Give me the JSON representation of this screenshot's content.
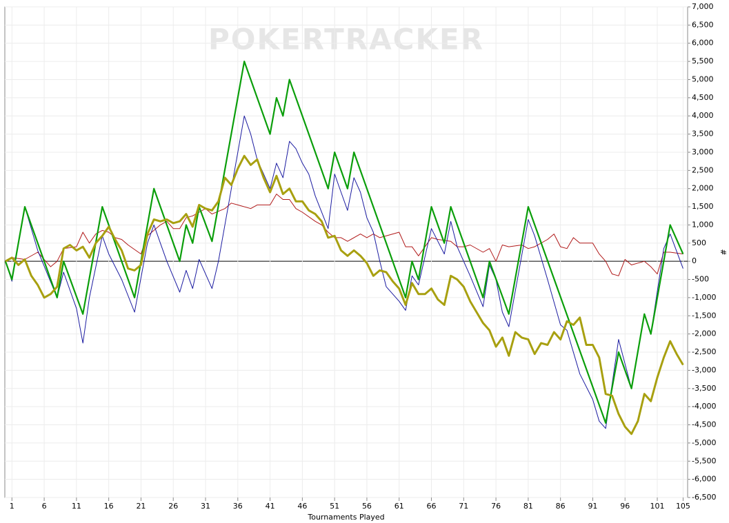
{
  "chart_data": {
    "type": "line",
    "watermark": "POKERTRACKER",
    "x_label": "Tournaments Played",
    "y_label": "#",
    "xlim": [
      -0.1,
      105.7
    ],
    "ylim": [
      -6500,
      7000
    ],
    "xticks": [
      1,
      6,
      11,
      16,
      21,
      26,
      31,
      36,
      41,
      46,
      51,
      56,
      61,
      66,
      71,
      76,
      81,
      86,
      91,
      96,
      101,
      105
    ],
    "yticks": [
      {
        "value": -6500,
        "label": "-6,500"
      },
      {
        "value": -6000,
        "label": "-6,000"
      },
      {
        "value": -5500,
        "label": "-5,500"
      },
      {
        "value": -5000,
        "label": "-5,000"
      },
      {
        "value": -4500,
        "label": "-4,500"
      },
      {
        "value": -4000,
        "label": "-4,000"
      },
      {
        "value": -3500,
        "label": "-3,500"
      },
      {
        "value": -3000,
        "label": "-3,000"
      },
      {
        "value": -2500,
        "label": "-2,500"
      },
      {
        "value": -2000,
        "label": "-2,000"
      },
      {
        "value": -1500,
        "label": "-1,500"
      },
      {
        "value": -1000,
        "label": "-1,000"
      },
      -500,
      0,
      500,
      {
        "value": 1000,
        "label": "1,000"
      },
      {
        "value": 1500,
        "label": "1,500"
      },
      {
        "value": 2000,
        "label": "2,000"
      },
      {
        "value": 2500,
        "label": "2,500"
      },
      {
        "value": 3000,
        "label": "3,000"
      },
      {
        "value": 3500,
        "label": "3,500"
      },
      {
        "value": 4000,
        "label": "4,000"
      },
      {
        "value": 4500,
        "label": "4,500"
      },
      {
        "value": 5000,
        "label": "5,000"
      },
      {
        "value": 5500,
        "label": "5,500"
      },
      {
        "value": 6000,
        "label": "6,000"
      },
      {
        "value": 6500,
        "label": "6,500"
      },
      {
        "value": 7000,
        "label": "7,000"
      }
    ],
    "grid": true,
    "series": [
      {
        "color": "#b01818",
        "width": 1,
        "x": [
          0,
          1,
          3,
          5,
          7,
          8,
          9,
          11,
          12,
          13,
          14,
          15,
          16,
          17,
          18,
          19,
          21,
          22,
          24,
          25,
          26,
          27,
          28,
          29,
          30,
          31,
          32,
          34,
          35,
          36,
          38,
          39,
          41,
          42,
          43,
          44,
          45,
          46,
          48,
          49,
          50,
          51,
          52,
          53,
          55,
          56,
          57,
          58,
          60,
          61,
          62,
          63,
          64,
          66,
          67,
          69,
          70,
          71,
          72,
          74,
          75,
          76,
          77,
          78,
          80,
          81,
          82,
          84,
          85,
          86,
          87,
          88,
          89,
          91,
          92,
          93,
          94,
          95,
          96,
          97,
          98,
          99,
          100,
          101,
          102,
          103,
          105
        ],
        "values": [
          0,
          100,
          50,
          250,
          -150,
          0,
          350,
          400,
          800,
          500,
          750,
          850,
          800,
          650,
          600,
          450,
          200,
          700,
          1000,
          1100,
          900,
          900,
          1200,
          1250,
          1350,
          1450,
          1300,
          1450,
          1600,
          1550,
          1450,
          1550,
          1550,
          1850,
          1700,
          1700,
          1450,
          1350,
          1100,
          1000,
          800,
          650,
          650,
          550,
          750,
          650,
          750,
          650,
          750,
          800,
          400,
          400,
          150,
          650,
          600,
          550,
          400,
          400,
          450,
          250,
          350,
          0,
          450,
          400,
          450,
          350,
          400,
          600,
          750,
          400,
          350,
          650,
          500,
          500,
          200,
          0,
          -350,
          -400,
          50,
          -100,
          -50,
          0,
          -150,
          -350,
          250,
          250,
          200
        ]
      },
      {
        "color": "#1a1aa0",
        "width": 1,
        "x": [
          0,
          1,
          3,
          5,
          8,
          9,
          11,
          12,
          13,
          15,
          16,
          18,
          20,
          22,
          23,
          24,
          25,
          27,
          28,
          29,
          30,
          32,
          33,
          37,
          38,
          39,
          41,
          42,
          43,
          44,
          45,
          46,
          47,
          48,
          50,
          51,
          52,
          53,
          54,
          55,
          56,
          57,
          58,
          59,
          61,
          62,
          63,
          64,
          66,
          68,
          69,
          70,
          72,
          74,
          75,
          76,
          77,
          78,
          81,
          82,
          84,
          86,
          87,
          89,
          91,
          92,
          93,
          95,
          97,
          99,
          100,
          102,
          103,
          105
        ],
        "values": [
          0,
          -550,
          1500,
          300,
          -1000,
          -300,
          -1300,
          -2250,
          -1000,
          700,
          200,
          -500,
          -1400,
          500,
          1000,
          500,
          0,
          -850,
          -250,
          -750,
          50,
          -750,
          0,
          4000,
          3500,
          2800,
          2000,
          2700,
          2300,
          3300,
          3100,
          2700,
          2400,
          1800,
          900,
          2400,
          1900,
          1400,
          2300,
          1900,
          1200,
          800,
          0,
          -700,
          -1100,
          -1350,
          -400,
          -650,
          900,
          200,
          1100,
          400,
          -400,
          -1250,
          -100,
          -500,
          -1400,
          -1800,
          1150,
          700,
          -500,
          -1750,
          -1900,
          -3100,
          -3800,
          -4400,
          -4600,
          -2150,
          -3500,
          -1450,
          -2000,
          350,
          750,
          -200
        ]
      },
      {
        "color": "#0a9e0a",
        "width": 2.2,
        "x": [
          0,
          1,
          3,
          8,
          9,
          12,
          15,
          20,
          23,
          27,
          28,
          29,
          30,
          32,
          37,
          41,
          42,
          43,
          44,
          50,
          51,
          53,
          54,
          62,
          63,
          64,
          66,
          68,
          69,
          74,
          75,
          78,
          81,
          93,
          95,
          97,
          99,
          100,
          103,
          105
        ],
        "values": [
          0,
          -500,
          1500,
          -1000,
          0,
          -1450,
          1500,
          -1000,
          2000,
          0,
          1000,
          500,
          1500,
          550,
          5500,
          3500,
          4500,
          4000,
          5000,
          2000,
          3000,
          2000,
          3000,
          -1000,
          0,
          -500,
          1500,
          500,
          1500,
          -1000,
          0,
          -1450,
          1500,
          -4450,
          -2500,
          -3500,
          -1450,
          -2000,
          1000,
          200
        ]
      },
      {
        "color": "#a8a010",
        "width": 3,
        "x": [
          0,
          1,
          2,
          3,
          4,
          5,
          6,
          7,
          8,
          9,
          10,
          11,
          12,
          13,
          14,
          15,
          16,
          17,
          18,
          19,
          20,
          21,
          22,
          23,
          24,
          25,
          26,
          27,
          28,
          29,
          30,
          31,
          32,
          33,
          34,
          35,
          36,
          37,
          38,
          39,
          40,
          41,
          42,
          43,
          44,
          45,
          46,
          47,
          48,
          49,
          50,
          51,
          52,
          53,
          54,
          55,
          56,
          57,
          58,
          59,
          60,
          61,
          62,
          63,
          64,
          65,
          66,
          67,
          68,
          69,
          70,
          71,
          72,
          73,
          74,
          75,
          76,
          77,
          78,
          79,
          80,
          81,
          82,
          83,
          84,
          85,
          86,
          87,
          88,
          89,
          90,
          91,
          92,
          93,
          94,
          95,
          96,
          97,
          98,
          99,
          100,
          101,
          102,
          103,
          104,
          105
        ],
        "values": [
          0,
          100,
          -100,
          50,
          -400,
          -650,
          -1000,
          -900,
          -700,
          350,
          450,
          300,
          400,
          100,
          500,
          700,
          950,
          600,
          300,
          -200,
          -250,
          -100,
          750,
          1150,
          1100,
          1150,
          1050,
          1100,
          1300,
          950,
          1550,
          1450,
          1400,
          1650,
          2300,
          2100,
          2550,
          2900,
          2650,
          2800,
          2300,
          1900,
          2350,
          1850,
          2000,
          1650,
          1650,
          1400,
          1300,
          1100,
          650,
          700,
          300,
          150,
          300,
          150,
          -50,
          -400,
          -250,
          -300,
          -550,
          -750,
          -1200,
          -600,
          -900,
          -900,
          -750,
          -1050,
          -1200,
          -400,
          -500,
          -700,
          -1100,
          -1400,
          -1700,
          -1900,
          -2350,
          -2100,
          -2600,
          -1950,
          -2100,
          -2150,
          -2550,
          -2250,
          -2300,
          -1950,
          -2150,
          -1650,
          -1750,
          -1550,
          -2300,
          -2300,
          -2650,
          -3650,
          -3700,
          -4200,
          -4550,
          -4750,
          -4400,
          -3650,
          -3850,
          -3200,
          -2650,
          -2200,
          -2550,
          -2850
        ]
      }
    ]
  }
}
